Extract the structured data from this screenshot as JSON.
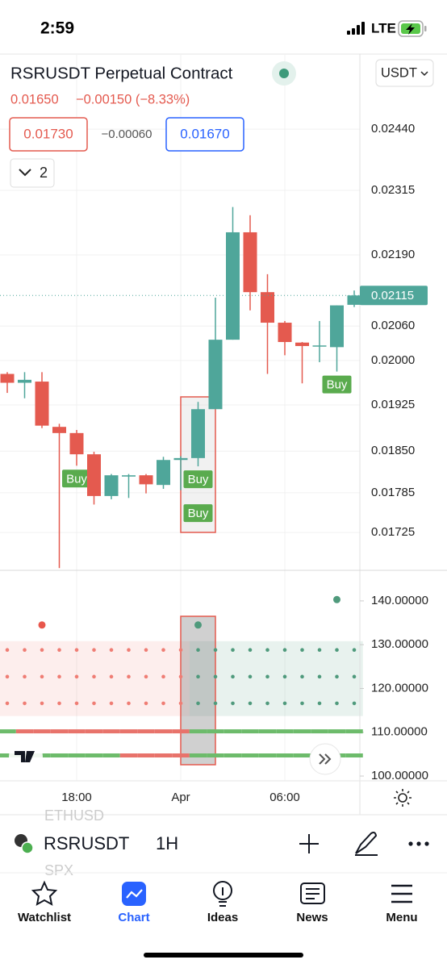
{
  "status_bar": {
    "time": "2:59",
    "network": "LTE"
  },
  "header": {
    "title": "RSRUSDT Perpetual Contract",
    "price": "0.01650",
    "change": "−0.00150 (−8.33%)",
    "sell": "0.01730",
    "spread": "−0.00060",
    "buy": "0.01670",
    "indicators": "2",
    "currency": "USDT"
  },
  "chart_data": [
    {
      "type": "candlestick",
      "x": [
        null,
        null,
        null,
        null,
        "18:00",
        null,
        null,
        null,
        null,
        null,
        "Apr",
        null,
        null,
        null,
        null,
        null,
        "06:00",
        null,
        null,
        null,
        null
      ],
      "open": [
        0.01977,
        0.01962,
        0.01964,
        0.01889,
        0.01879,
        0.01845,
        0.0178,
        0.0181,
        0.01812,
        0.01797,
        0.01836,
        0.01839,
        0.01918,
        0.02036,
        0.02233,
        0.02121,
        0.02066,
        0.02031,
        0.02024,
        0.02023,
        0.02098
      ],
      "high": [
        0.0198,
        0.0198,
        0.0198,
        0.01894,
        0.01884,
        0.01849,
        0.01814,
        0.01814,
        0.01814,
        0.01841,
        0.01842,
        0.0193,
        0.02111,
        0.02282,
        0.02266,
        0.02154,
        0.02069,
        0.02032,
        0.02069,
        0.02097,
        0.02124
      ],
      "low": [
        0.01945,
        0.01936,
        0.01887,
        0.01673,
        0.01827,
        0.01767,
        0.01775,
        0.01777,
        0.01784,
        0.01791,
        0.01789,
        0.01826,
        0.01918,
        0.02036,
        0.02088,
        0.01977,
        0.02009,
        0.01961,
        0.01997,
        0.01981,
        0.02094
      ],
      "close": [
        0.01962,
        0.01967,
        0.01891,
        0.01879,
        0.01845,
        0.0178,
        0.01812,
        0.01812,
        0.01798,
        0.01836,
        0.01839,
        0.01918,
        0.02036,
        0.02233,
        0.02121,
        0.02066,
        0.02032,
        0.02025,
        0.02026,
        0.02097,
        0.02115
      ],
      "signals": [
        null,
        null,
        null,
        null,
        [
          "Buy"
        ],
        null,
        null,
        null,
        null,
        null,
        null,
        [
          "Buy",
          "Buy"
        ],
        null,
        null,
        null,
        null,
        null,
        null,
        null,
        [
          "Buy"
        ],
        null
      ],
      "up_color": "#4fa69a",
      "down_color": "#e45a4f",
      "signal_color": "#5aab4e",
      "log_scale": true,
      "grid": true,
      "ylim": [
        0.01671,
        0.02601
      ],
      "yticks": [
        {
          "value": 0.0244,
          "label": "0.02440"
        },
        0.02315,
        {
          "value": 0.0219,
          "label": "0.02190"
        },
        {
          "value": 0.0206,
          "label": "0.02060"
        },
        {
          "value": 0.02,
          "label": "0.02000"
        },
        0.01925,
        {
          "value": 0.0185,
          "label": "0.01850"
        },
        0.01785,
        0.01725
      ]
    },
    {
      "type": "indicator",
      "ylim": [
        98.9,
        146.8
      ],
      "yticks": [
        {
          "value": 140,
          "label": "140.00000"
        },
        {
          "value": 130,
          "label": "130.00000"
        },
        {
          "value": 120,
          "label": "120.00000"
        },
        {
          "value": 110,
          "label": "110.00000"
        },
        {
          "value": 100,
          "label": "100.00000"
        }
      ],
      "band": [
        113.7,
        130.8
      ],
      "series": [
        {
          "kind": "dots",
          "shade": true,
          "color": "#ef7d74",
          "values": [
            128.8,
            128.8,
            128.8,
            128.8,
            128.8,
            128.8,
            128.8,
            128.8,
            128.8,
            128.8,
            128.8,
            null,
            null,
            null,
            null,
            null,
            null,
            null,
            null,
            null,
            null
          ]
        },
        {
          "kind": "dots",
          "color": "#ef7d74",
          "values": [
            122.7,
            122.7,
            122.7,
            122.7,
            122.7,
            122.7,
            122.7,
            122.7,
            122.7,
            122.7,
            122.7,
            null,
            null,
            null,
            null,
            null,
            null,
            null,
            null,
            null,
            null
          ]
        },
        {
          "kind": "dots",
          "color": "#ef7d74",
          "values": [
            116.6,
            116.6,
            116.6,
            116.6,
            116.6,
            116.6,
            116.6,
            116.6,
            116.6,
            116.6,
            116.6,
            null,
            null,
            null,
            null,
            null,
            null,
            null,
            null,
            null,
            null
          ]
        },
        {
          "kind": "dots",
          "shade": true,
          "color": "#4f9a7c",
          "values": [
            null,
            null,
            null,
            null,
            null,
            null,
            null,
            null,
            null,
            null,
            null,
            128.8,
            128.8,
            128.8,
            128.8,
            128.8,
            128.8,
            128.8,
            128.8,
            128.8,
            128.8
          ]
        },
        {
          "kind": "dots",
          "color": "#4f9a7c",
          "values": [
            null,
            null,
            null,
            null,
            null,
            null,
            null,
            null,
            null,
            null,
            null,
            122.7,
            122.7,
            122.7,
            122.7,
            122.7,
            122.7,
            122.7,
            122.7,
            122.7,
            122.7
          ]
        },
        {
          "kind": "dots",
          "color": "#4f9a7c",
          "values": [
            null,
            null,
            null,
            null,
            null,
            null,
            null,
            null,
            null,
            null,
            null,
            116.6,
            116.6,
            116.6,
            116.6,
            116.6,
            116.6,
            116.6,
            116.6,
            116.6,
            116.6
          ]
        },
        {
          "kind": "line",
          "color": "#e8736b",
          "values": [
            null,
            110.2,
            110.2,
            110.2,
            110.2,
            110.2,
            110.2,
            110.2,
            110.2,
            110.2,
            110.2,
            null,
            null,
            null,
            null,
            null,
            null,
            null,
            null,
            null,
            null
          ]
        },
        {
          "kind": "line",
          "color": "#6dbb6b",
          "values": [
            110.2,
            null,
            null,
            null,
            null,
            null,
            null,
            null,
            null,
            null,
            null,
            110.2,
            110.2,
            110.2,
            110.2,
            110.2,
            110.2,
            110.2,
            110.2,
            110.2,
            110.2
          ]
        },
        {
          "kind": "line",
          "color": "#6dbb6b",
          "values": [
            104.7,
            104.7,
            104.7,
            104.7,
            104.7,
            104.7,
            104.7,
            null,
            null,
            null,
            null,
            104.7,
            104.7,
            104.7,
            104.7,
            104.7,
            104.7,
            104.7,
            104.7,
            104.7,
            104.7
          ]
        },
        {
          "kind": "line",
          "color": "#e8736b",
          "values": [
            null,
            null,
            null,
            null,
            null,
            null,
            null,
            104.7,
            104.7,
            104.7,
            104.7,
            null,
            null,
            null,
            null,
            null,
            null,
            null,
            null,
            null,
            null
          ]
        },
        {
          "kind": "circle",
          "color": "#e8574c",
          "values": [
            null,
            null,
            134.5,
            null,
            null,
            null,
            null,
            null,
            null,
            null,
            null,
            null,
            null,
            null,
            null,
            null,
            null,
            null,
            null,
            null,
            null
          ]
        },
        {
          "kind": "circle",
          "color": "#4f9a7c",
          "values": [
            null,
            null,
            null,
            null,
            null,
            null,
            null,
            null,
            null,
            null,
            null,
            134.5,
            null,
            null,
            null,
            null,
            null,
            null,
            null,
            140.3,
            null
          ]
        }
      ]
    }
  ],
  "toolbar": {
    "symbol": "RSRUSDT",
    "interval": "1H",
    "ghost_above": "ETHUSD",
    "ghost_below": "SPX"
  },
  "tab_bar": {
    "tabs": [
      "Watchlist",
      "Chart",
      "Ideas",
      "News",
      "Menu"
    ]
  }
}
